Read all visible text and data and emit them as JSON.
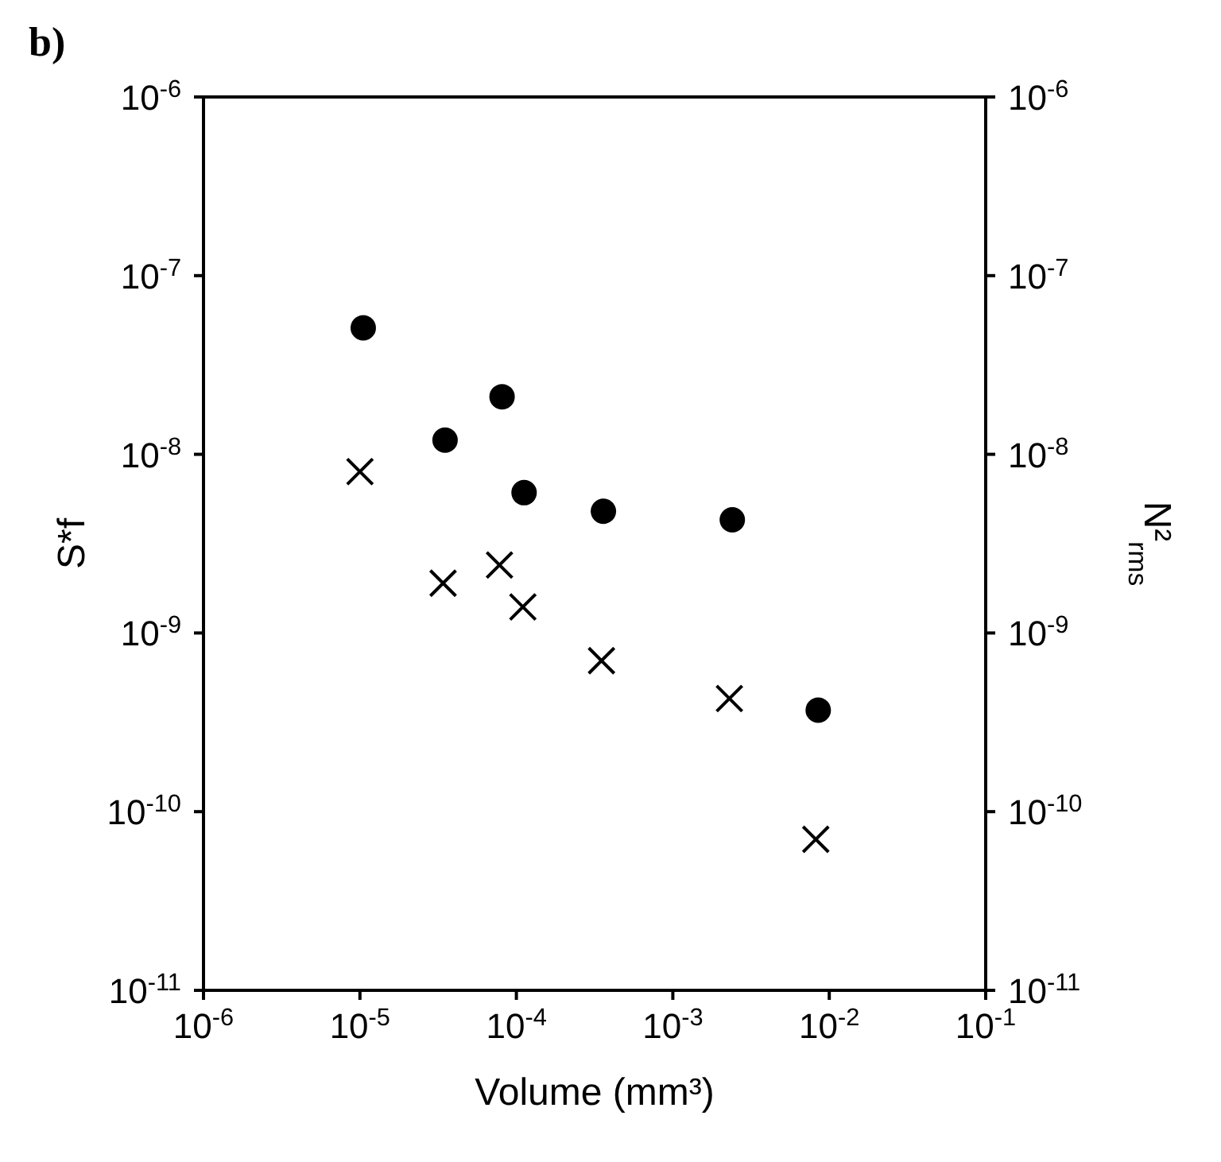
{
  "chart_data": {
    "type": "scatter",
    "title": "b)",
    "xlabel": "Volume (mm³)",
    "ylabel": "S*f",
    "y2label": "N²$_{rms}$",
    "log": "xy",
    "xlim": [
      1e-06,
      0.1
    ],
    "xticks": [
      {
        "value": 1e-06,
        "label": "10$^{-6}$"
      },
      {
        "value": 1e-05,
        "label": "10$^{-5}$"
      },
      {
        "value": 0.0001,
        "label": "10$^{-4}$"
      },
      {
        "value": 0.001,
        "label": "10$^{-3}$"
      },
      {
        "value": 0.01,
        "label": "10$^{-2}$"
      },
      {
        "value": 0.1,
        "label": "10$^{-1}$"
      }
    ],
    "ylim": [
      1e-11,
      1e-06
    ],
    "yticks": [
      {
        "value": 1e-11,
        "label": "10$^{-11}$"
      },
      {
        "value": 1e-10,
        "label": "10$^{-10}$"
      },
      {
        "value": 1e-09,
        "label": "10$^{-9}$"
      },
      {
        "value": 1e-08,
        "label": "10$^{-8}$"
      },
      {
        "value": 1e-07,
        "label": "10$^{-7}$"
      },
      {
        "value": 1e-06,
        "label": "10$^{-6}$"
      }
    ],
    "grid": false,
    "legend": false,
    "series": [
      {
        "color": "#000000",
        "marker": "circle",
        "x": [
          1.05e-05,
          3.5e-05,
          8.1e-05,
          0.000112,
          0.00036,
          0.0024,
          0.0085
        ],
        "values": [
          5.1e-08,
          1.2e-08,
          2.1e-08,
          6.1e-09,
          4.8e-09,
          4.3e-09,
          3.7e-10
        ]
      },
      {
        "color": "#000000",
        "marker": "cross",
        "x": [
          1e-05,
          3.4e-05,
          7.8e-05,
          0.00011,
          0.00035,
          0.0023,
          0.0082
        ],
        "values": [
          8e-09,
          1.9e-09,
          2.4e-09,
          1.4e-09,
          7e-10,
          4.3e-10,
          7e-11
        ]
      }
    ]
  }
}
